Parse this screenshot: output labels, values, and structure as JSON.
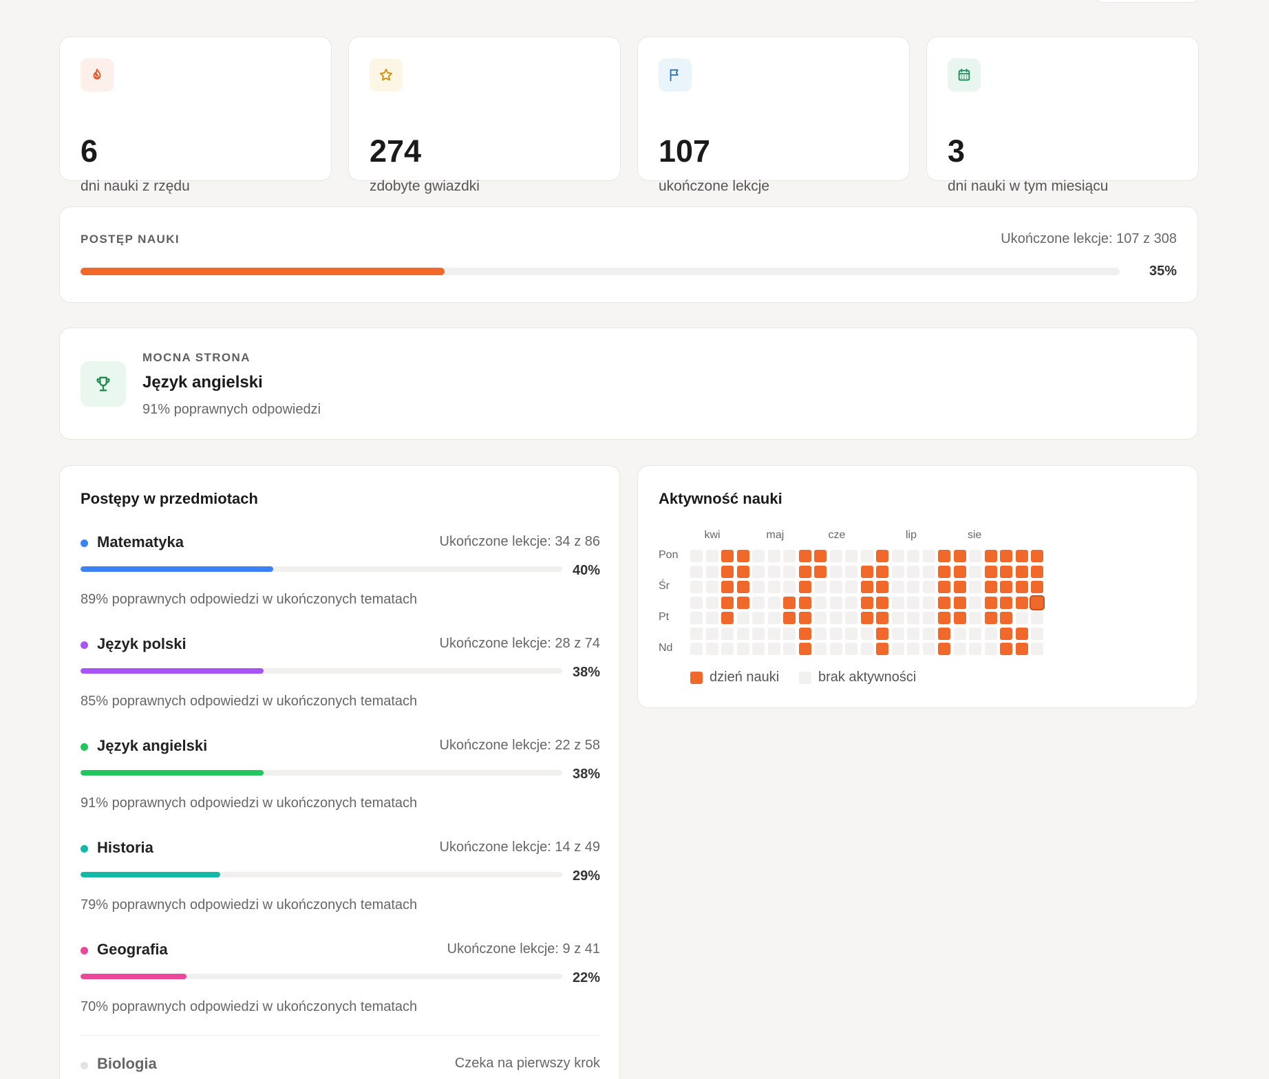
{
  "stats": [
    {
      "icon": "flame-icon",
      "value": "6",
      "label": "dni nauki z rzędu",
      "color": "#e4542a",
      "bg": "#fdf0ea"
    },
    {
      "icon": "star-icon",
      "value": "274",
      "label": "zdobyte gwiazdki",
      "color": "#d58a06",
      "bg": "#fdf6e5"
    },
    {
      "icon": "flag-icon",
      "value": "107",
      "label": "ukończone lekcje",
      "color": "#2a6fb3",
      "bg": "#eaf4fb"
    },
    {
      "icon": "calendar-icon",
      "value": "3",
      "label": "dni nauki w tym miesiącu",
      "color": "#1e8a58",
      "bg": "#e8f6ef"
    }
  ],
  "progress": {
    "eyebrow": "POSTĘP NAUKI",
    "meta": "Ukończone lekcje: 107 z 308",
    "percent_label": "35%",
    "fraction": 0.35,
    "color": "#f0682a"
  },
  "strength": {
    "eyebrow": "MOCNA STRONA",
    "subject": "Język angielski",
    "desc": "91% poprawnych odpowiedzi",
    "icon": "trophy-icon",
    "color": "#1f8a4c"
  },
  "subjects_card": {
    "title": "Postępy w przedmiotach",
    "subjects": [
      {
        "name": "Matematyka",
        "lessons": "Ukończone lekcje: 34 z 86",
        "percent_label": "40%",
        "fraction": 0.4,
        "accuracy": "89% poprawnych odpowiedzi w ukończonych tematach",
        "color": "#3b82f6"
      },
      {
        "name": "Język polski",
        "lessons": "Ukończone lekcje: 28 z 74",
        "percent_label": "38%",
        "fraction": 0.38,
        "accuracy": "85% poprawnych odpowiedzi w ukończonych tematach",
        "color": "#a855f7"
      },
      {
        "name": "Język angielski",
        "lessons": "Ukończone lekcje: 22 z 58",
        "percent_label": "38%",
        "fraction": 0.38,
        "accuracy": "91% poprawnych odpowiedzi w ukończonych tematach",
        "color": "#22c55e"
      },
      {
        "name": "Historia",
        "lessons": "Ukończone lekcje: 14 z 49",
        "percent_label": "29%",
        "fraction": 0.29,
        "accuracy": "79% poprawnych odpowiedzi w ukończonych tematach",
        "color": "#14b8a6"
      },
      {
        "name": "Geografia",
        "lessons": "Ukończone lekcje: 9 z 41",
        "percent_label": "22%",
        "fraction": 0.22,
        "accuracy": "70% poprawnych odpowiedzi w ukończonych tematach",
        "color": "#ec4899"
      }
    ],
    "waiting": {
      "name": "Biologia",
      "status": "Czeka na pierwszy krok"
    }
  },
  "activity": {
    "title": "Aktywność nauki",
    "months": [
      {
        "label": "kwi",
        "week": 1
      },
      {
        "label": "maj",
        "week": 5
      },
      {
        "label": "cze",
        "week": 9
      },
      {
        "label": "lip",
        "week": 14
      },
      {
        "label": "sie",
        "week": 18
      }
    ],
    "day_labels": [
      {
        "label": "Pon",
        "row": 0
      },
      {
        "label": "Śr",
        "row": 2
      },
      {
        "label": "Pt",
        "row": 4
      },
      {
        "label": "Nd",
        "row": 6
      }
    ],
    "active_color": "#f0682a",
    "empty_color": "#f2f1ef",
    "weeks": [
      [
        0,
        0,
        0,
        0,
        0,
        0,
        0
      ],
      [
        0,
        0,
        0,
        0,
        0,
        0,
        0
      ],
      [
        1,
        1,
        1,
        1,
        1,
        0,
        0
      ],
      [
        1,
        1,
        1,
        1,
        0,
        0,
        0
      ],
      [
        0,
        0,
        0,
        0,
        0,
        0,
        0
      ],
      [
        0,
        0,
        0,
        0,
        0,
        0,
        0
      ],
      [
        0,
        0,
        0,
        1,
        1,
        0,
        0
      ],
      [
        1,
        1,
        1,
        1,
        1,
        1,
        1
      ],
      [
        1,
        1,
        0,
        0,
        0,
        0,
        0
      ],
      [
        0,
        0,
        0,
        0,
        0,
        0,
        0
      ],
      [
        0,
        0,
        0,
        0,
        0,
        0,
        0
      ],
      [
        0,
        1,
        1,
        1,
        1,
        0,
        0
      ],
      [
        1,
        1,
        1,
        1,
        1,
        1,
        1
      ],
      [
        0,
        0,
        0,
        0,
        0,
        0,
        0
      ],
      [
        0,
        0,
        0,
        0,
        0,
        0,
        0
      ],
      [
        0,
        0,
        0,
        0,
        0,
        0,
        0
      ],
      [
        1,
        1,
        1,
        1,
        1,
        1,
        1
      ],
      [
        1,
        1,
        1,
        1,
        1,
        0,
        0
      ],
      [
        0,
        0,
        0,
        0,
        0,
        0,
        0
      ],
      [
        1,
        1,
        1,
        1,
        1,
        0,
        0
      ],
      [
        1,
        1,
        1,
        1,
        1,
        1,
        1
      ],
      [
        1,
        1,
        1,
        1,
        0,
        1,
        1
      ],
      [
        1,
        1,
        1,
        1,
        0,
        0,
        0
      ]
    ],
    "current_day": {
      "week": 22,
      "row": 3
    },
    "legend": {
      "active": "dzień nauki",
      "empty": "brak aktywności"
    }
  }
}
